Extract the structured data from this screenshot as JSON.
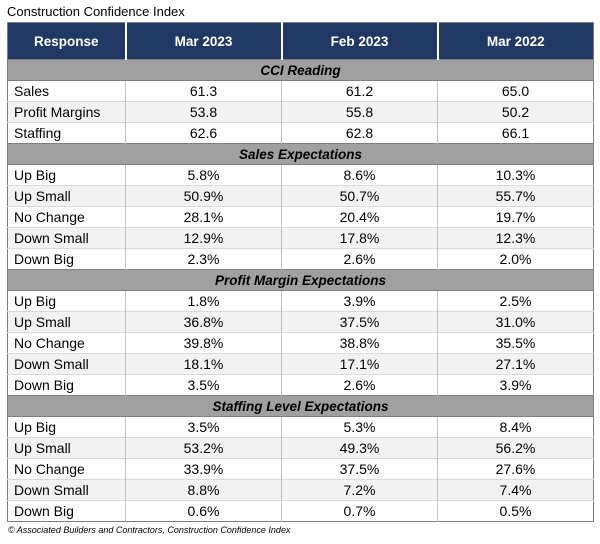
{
  "page_title": "Construction Confidence Index",
  "chart_data": {
    "type": "table",
    "title": "Construction Confidence Index",
    "columns": [
      "Response",
      "Mar 2023",
      "Feb 2023",
      "Mar 2022"
    ],
    "sections": [
      {
        "header": "CCI Reading",
        "rows": [
          [
            "Sales",
            "61.3",
            "61.2",
            "65.0"
          ],
          [
            "Profit Margins",
            "53.8",
            "55.8",
            "50.2"
          ],
          [
            "Staffing",
            "62.6",
            "62.8",
            "66.1"
          ]
        ]
      },
      {
        "header": "Sales Expectations",
        "rows": [
          [
            "Up Big",
            "5.8%",
            "8.6%",
            "10.3%"
          ],
          [
            "Up Small",
            "50.9%",
            "50.7%",
            "55.7%"
          ],
          [
            "No Change",
            "28.1%",
            "20.4%",
            "19.7%"
          ],
          [
            "Down Small",
            "12.9%",
            "17.8%",
            "12.3%"
          ],
          [
            "Down Big",
            "2.3%",
            "2.6%",
            "2.0%"
          ]
        ]
      },
      {
        "header": "Profit Margin Expectations",
        "rows": [
          [
            "Up Big",
            "1.8%",
            "3.9%",
            "2.5%"
          ],
          [
            "Up Small",
            "36.8%",
            "37.5%",
            "31.0%"
          ],
          [
            "No Change",
            "39.8%",
            "38.8%",
            "35.5%"
          ],
          [
            "Down Small",
            "18.1%",
            "17.1%",
            "27.1%"
          ],
          [
            "Down Big",
            "3.5%",
            "2.6%",
            "3.9%"
          ]
        ]
      },
      {
        "header": "Staffing Level Expectations",
        "rows": [
          [
            "Up Big",
            "3.5%",
            "5.3%",
            "8.4%"
          ],
          [
            "Up Small",
            "53.2%",
            "49.3%",
            "56.2%"
          ],
          [
            "No Change",
            "33.9%",
            "37.5%",
            "27.6%"
          ],
          [
            "Down Small",
            "8.8%",
            "7.2%",
            "7.4%"
          ],
          [
            "Down Big",
            "0.6%",
            "0.7%",
            "0.5%"
          ]
        ]
      }
    ],
    "source": "© Associated Builders and Contractors, Construction Confidence Index",
    "layout": "grid_table_with_section_bands"
  },
  "colors": {
    "header_bg": "#1F3864",
    "header_text": "#FFFFFF",
    "section_bg": "#A0A0A0",
    "alt_row_bg": "#F2F2F2",
    "row_border": "#D9D9D9",
    "outer_border": "#7F7F7F"
  }
}
